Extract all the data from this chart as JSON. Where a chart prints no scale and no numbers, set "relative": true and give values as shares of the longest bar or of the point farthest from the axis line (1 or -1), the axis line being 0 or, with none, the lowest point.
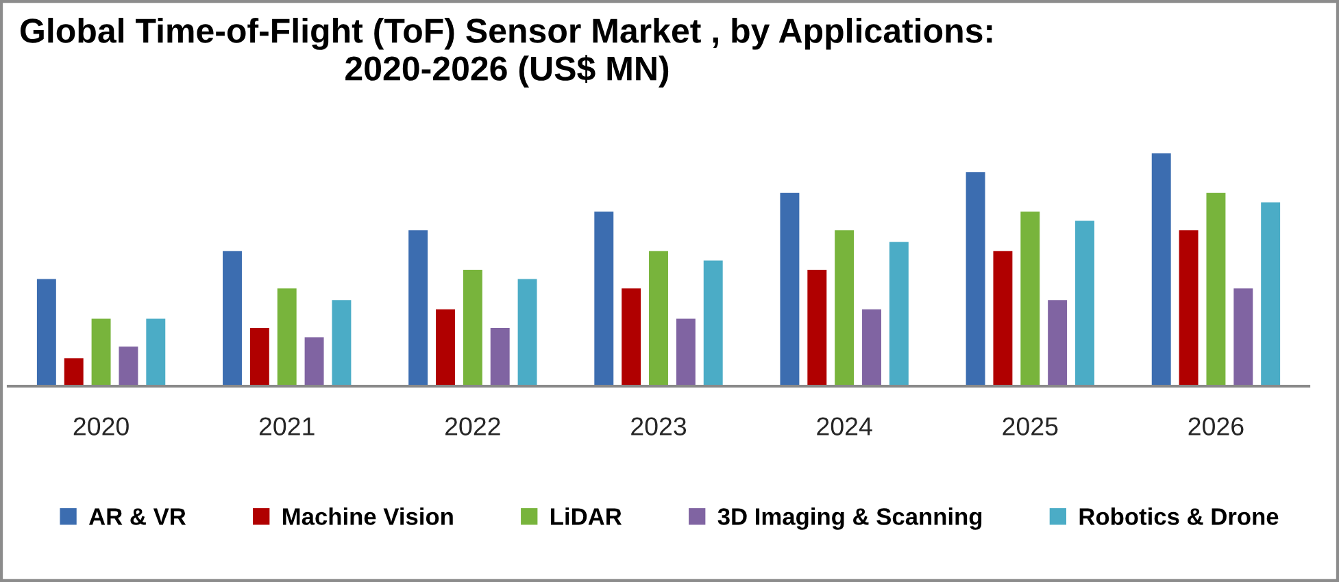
{
  "chart_data": {
    "type": "bar",
    "title": "Global Time-of-Flight (ToF) Sensor Market , by Applications:\n2020-2026 (US$ MN)",
    "categories": [
      "2020",
      "2021",
      "2022",
      "2023",
      "2024",
      "2025",
      "2026"
    ],
    "relative": true,
    "legend": "bottom",
    "series": [
      {
        "name": "AR & VR",
        "color": "#3c6db0",
        "values": [
          0.46,
          0.58,
          0.67,
          0.75,
          0.83,
          0.92,
          1
        ]
      },
      {
        "name": "Machine Vision",
        "color": "#b00000",
        "values": [
          0.12,
          0.25,
          0.33,
          0.42,
          0.5,
          0.58,
          0.67
        ]
      },
      {
        "name": "LiDAR",
        "color": "#78b43c",
        "values": [
          0.29,
          0.42,
          0.5,
          0.58,
          0.67,
          0.75,
          0.83
        ]
      },
      {
        "name": "3D Imaging & Scanning",
        "color": "#8064a2",
        "values": [
          0.17,
          0.21,
          0.25,
          0.29,
          0.33,
          0.37,
          0.42
        ]
      },
      {
        "name": "Robotics & Drone",
        "color": "#4bacc6",
        "values": [
          0.29,
          0.37,
          0.46,
          0.54,
          0.62,
          0.71,
          0.79
        ]
      }
    ]
  }
}
